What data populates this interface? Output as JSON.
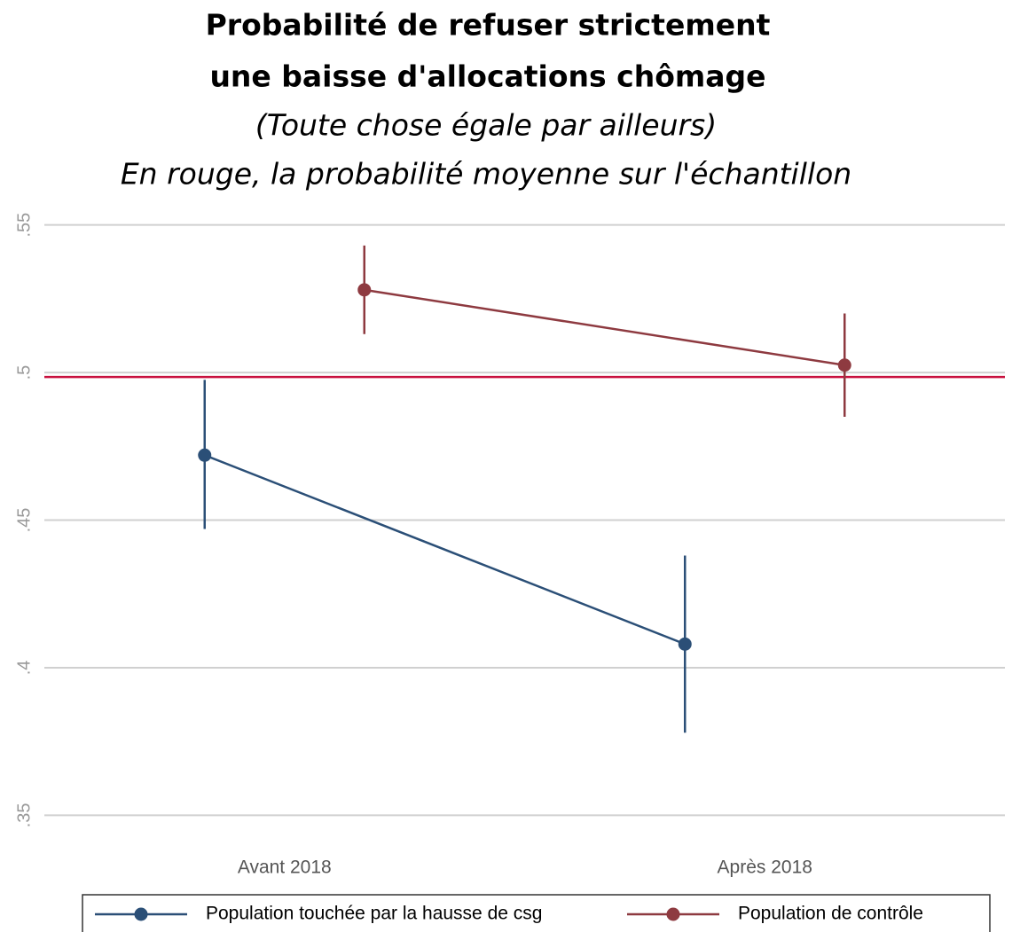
{
  "chart_data": {
    "type": "line",
    "title": [
      "Probabilité de refuser strictement",
      "une baisse d'allocations chômage"
    ],
    "subtitle": [
      "(Toute chose égale par ailleurs)",
      "En rouge, la probabilité moyenne sur l'échantillon"
    ],
    "categories": [
      "Avant 2018",
      "Après 2018"
    ],
    "series": [
      {
        "name": "Population touchée par la hausse de csg",
        "color": "#2b4f77",
        "values": [
          0.472,
          0.408
        ],
        "ci_low": [
          0.447,
          0.378
        ],
        "ci_high": [
          0.4975,
          0.438
        ]
      },
      {
        "name": "Population de contrôle",
        "color": "#8e3a40",
        "values": [
          0.528,
          0.5025
        ],
        "ci_low": [
          0.513,
          0.485
        ],
        "ci_high": [
          0.543,
          0.52
        ]
      }
    ],
    "reference_line": {
      "value": 0.4985,
      "color": "#c8103e"
    },
    "ylim": [
      0.336,
      0.558
    ],
    "yticks": [
      {
        "value": 0.35,
        "label": ".35"
      },
      {
        "value": 0.4,
        "label": ".4"
      },
      {
        "value": 0.45,
        "label": ".45"
      },
      {
        "value": 0.5,
        "label": ".5"
      },
      {
        "value": 0.55,
        "label": ".55"
      }
    ],
    "grid": true
  }
}
